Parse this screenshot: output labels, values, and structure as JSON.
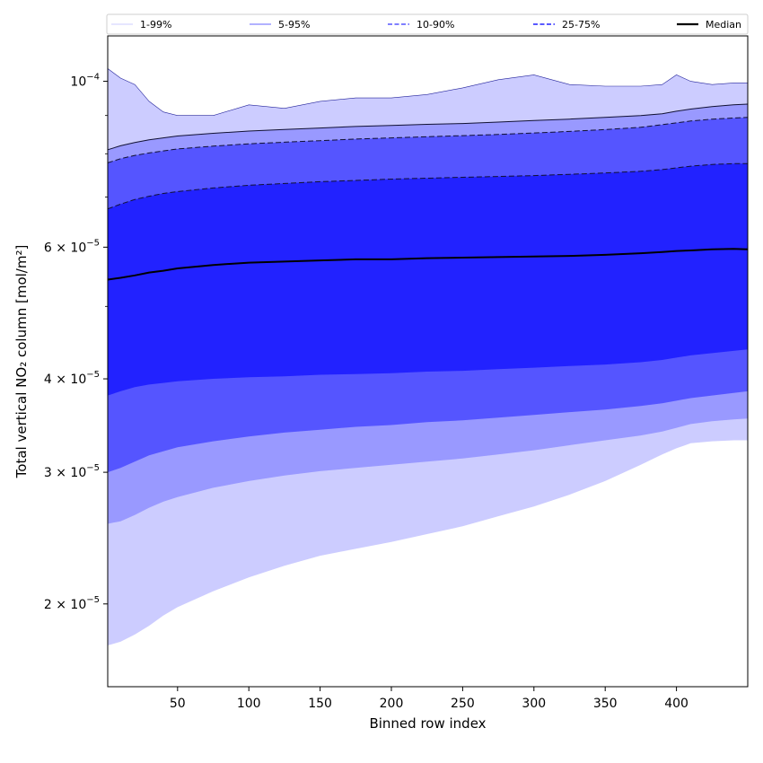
{
  "chart_data": {
    "type": "area",
    "xlabel": "Binned row index",
    "ylabel": "Total vertical NO₂ column [mol/m²]",
    "xlim": [
      1,
      450
    ],
    "ylim": [
      1.55e-05,
      0.000115
    ],
    "yscale": "log",
    "grid": false,
    "legend_position": "top",
    "x_ticks": [
      50,
      100,
      150,
      200,
      250,
      300,
      350,
      400
    ],
    "y_ticks": [
      {
        "value": 2e-05,
        "mantissa": "2",
        "exp": "−5"
      },
      {
        "value": 3e-05,
        "mantissa": "3",
        "exp": "−5"
      },
      {
        "value": 4e-05,
        "mantissa": "4",
        "exp": "−5"
      },
      {
        "value": 6e-05,
        "mantissa": "6",
        "exp": "−5"
      },
      {
        "value": 0.0001,
        "mantissa": "",
        "exp": "−4"
      }
    ],
    "x": [
      1,
      10,
      20,
      30,
      40,
      50,
      75,
      100,
      125,
      150,
      175,
      200,
      225,
      250,
      275,
      300,
      325,
      350,
      375,
      390,
      400,
      410,
      425,
      440,
      450
    ],
    "series": [
      {
        "name": "1-99%",
        "color": "#ccccff",
        "dash": "solid",
        "lower": [
          1.76e-05,
          1.78e-05,
          1.82e-05,
          1.87e-05,
          1.93e-05,
          1.98e-05,
          2.08e-05,
          2.17e-05,
          2.25e-05,
          2.32e-05,
          2.37e-05,
          2.42e-05,
          2.48e-05,
          2.54e-05,
          2.62e-05,
          2.7e-05,
          2.8e-05,
          2.92e-05,
          3.07e-05,
          3.17e-05,
          3.23e-05,
          3.28e-05,
          3.3e-05,
          3.31e-05,
          3.31e-05
        ],
        "upper": [
          0.000104,
          0.000101,
          9.9e-05,
          9.4e-05,
          9.1e-05,
          9e-05,
          9e-05,
          9.3e-05,
          9.2e-05,
          9.4e-05,
          9.5e-05,
          9.5e-05,
          9.6e-05,
          9.8e-05,
          0.0001005,
          0.000102,
          9.9e-05,
          9.85e-05,
          9.85e-05,
          9.9e-05,
          0.000102,
          0.0001,
          9.9e-05,
          9.95e-05,
          9.95e-05
        ]
      },
      {
        "name": "5-95%",
        "color": "#9999ff",
        "dash": "solid",
        "lower": [
          2.56e-05,
          2.58e-05,
          2.63e-05,
          2.69e-05,
          2.74e-05,
          2.78e-05,
          2.86e-05,
          2.92e-05,
          2.97e-05,
          3.01e-05,
          3.04e-05,
          3.07e-05,
          3.1e-05,
          3.13e-05,
          3.17e-05,
          3.21e-05,
          3.26e-05,
          3.31e-05,
          3.36e-05,
          3.4e-05,
          3.44e-05,
          3.48e-05,
          3.51e-05,
          3.53e-05,
          3.54e-05
        ],
        "upper": [
          8.1e-05,
          8.2e-05,
          8.28e-05,
          8.35e-05,
          8.4e-05,
          8.45e-05,
          8.52e-05,
          8.58e-05,
          8.62e-05,
          8.66e-05,
          8.7e-05,
          8.73e-05,
          8.76e-05,
          8.78e-05,
          8.82e-05,
          8.86e-05,
          8.9e-05,
          8.95e-05,
          9e-05,
          9.05e-05,
          9.12e-05,
          9.18e-05,
          9.25e-05,
          9.3e-05,
          9.32e-05
        ]
      },
      {
        "name": "10-90%",
        "color": "#5555ff",
        "dash": "dashed",
        "lower": [
          3e-05,
          3.04e-05,
          3.1e-05,
          3.16e-05,
          3.2e-05,
          3.24e-05,
          3.3e-05,
          3.35e-05,
          3.39e-05,
          3.42e-05,
          3.45e-05,
          3.47e-05,
          3.5e-05,
          3.52e-05,
          3.55e-05,
          3.58e-05,
          3.61e-05,
          3.64e-05,
          3.68e-05,
          3.71e-05,
          3.74e-05,
          3.77e-05,
          3.8e-05,
          3.83e-05,
          3.85e-05
        ],
        "upper": [
          7.78e-05,
          7.88e-05,
          7.96e-05,
          8.02e-05,
          8.07e-05,
          8.12e-05,
          8.19e-05,
          8.25e-05,
          8.29e-05,
          8.33e-05,
          8.37e-05,
          8.4e-05,
          8.43e-05,
          8.46e-05,
          8.49e-05,
          8.53e-05,
          8.57e-05,
          8.62e-05,
          8.68e-05,
          8.75e-05,
          8.8e-05,
          8.85e-05,
          8.9e-05,
          8.93e-05,
          8.95e-05
        ]
      },
      {
        "name": "25-75%",
        "color": "#2222ff",
        "dash": "dashed",
        "lower": [
          3.8e-05,
          3.85e-05,
          3.9e-05,
          3.93e-05,
          3.95e-05,
          3.97e-05,
          4e-05,
          4.02e-05,
          4.03e-05,
          4.05e-05,
          4.06e-05,
          4.07e-05,
          4.09e-05,
          4.1e-05,
          4.12e-05,
          4.14e-05,
          4.16e-05,
          4.18e-05,
          4.21e-05,
          4.24e-05,
          4.27e-05,
          4.3e-05,
          4.33e-05,
          4.36e-05,
          4.38e-05
        ],
        "upper": [
          6.75e-05,
          6.85e-05,
          6.95e-05,
          7.02e-05,
          7.08e-05,
          7.12e-05,
          7.2e-05,
          7.26e-05,
          7.3e-05,
          7.34e-05,
          7.37e-05,
          7.4e-05,
          7.42e-05,
          7.44e-05,
          7.46e-05,
          7.48e-05,
          7.51e-05,
          7.54e-05,
          7.58e-05,
          7.62e-05,
          7.66e-05,
          7.7e-05,
          7.74e-05,
          7.76e-05,
          7.76e-05
        ]
      },
      {
        "name": "Median",
        "color": "#000000",
        "dash": "solid",
        "values": [
          5.43e-05,
          5.46e-05,
          5.5e-05,
          5.55e-05,
          5.58e-05,
          5.62e-05,
          5.68e-05,
          5.72e-05,
          5.74e-05,
          5.76e-05,
          5.78e-05,
          5.78e-05,
          5.8e-05,
          5.81e-05,
          5.82e-05,
          5.83e-05,
          5.84e-05,
          5.86e-05,
          5.89e-05,
          5.91e-05,
          5.93e-05,
          5.94e-05,
          5.96e-05,
          5.97e-05,
          5.96e-05
        ]
      }
    ]
  }
}
